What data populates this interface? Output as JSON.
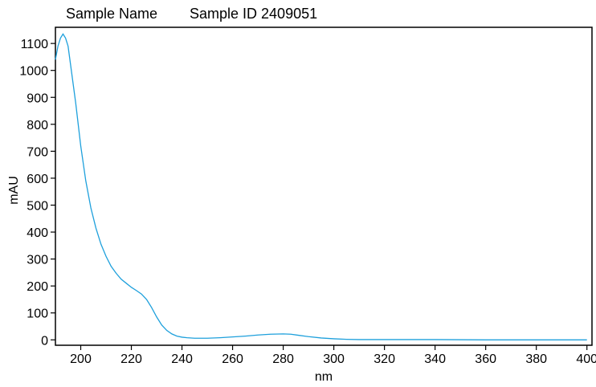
{
  "header": {
    "sample_name_label": "Sample Name",
    "sample_id_label": "Sample ID 2409051"
  },
  "chart_data": {
    "type": "line",
    "xlabel": "nm",
    "ylabel": "mAU",
    "xlim": [
      190,
      402
    ],
    "ylim": [
      -20,
      1160
    ],
    "x_ticks": [
      200,
      220,
      240,
      260,
      280,
      300,
      320,
      340,
      360,
      380,
      400
    ],
    "y_ticks": [
      0,
      100,
      200,
      300,
      400,
      500,
      600,
      700,
      800,
      900,
      1000,
      1100
    ],
    "grid": false,
    "line_color": "#1ea0dc",
    "series": [
      {
        "x": [
          190,
          191,
          192,
          193,
          194,
          195,
          196,
          198,
          200,
          202,
          204,
          206,
          208,
          210,
          212,
          214,
          216,
          218,
          220,
          222,
          224,
          226,
          228,
          230,
          232,
          234,
          236,
          238,
          240,
          242,
          245,
          250,
          255,
          260,
          265,
          270,
          275,
          280,
          283,
          286,
          290,
          295,
          300,
          305,
          310,
          320,
          340,
          360,
          380,
          400
        ],
        "y": [
          1040,
          1090,
          1120,
          1135,
          1120,
          1090,
          1020,
          880,
          720,
          590,
          490,
          415,
          355,
          310,
          273,
          247,
          225,
          210,
          195,
          183,
          170,
          150,
          120,
          85,
          55,
          35,
          22,
          14,
          10,
          8,
          6,
          6,
          8,
          11,
          14,
          18,
          21,
          22,
          21,
          17,
          12,
          7,
          4,
          2,
          1,
          1,
          1,
          0,
          0,
          0
        ]
      }
    ]
  }
}
